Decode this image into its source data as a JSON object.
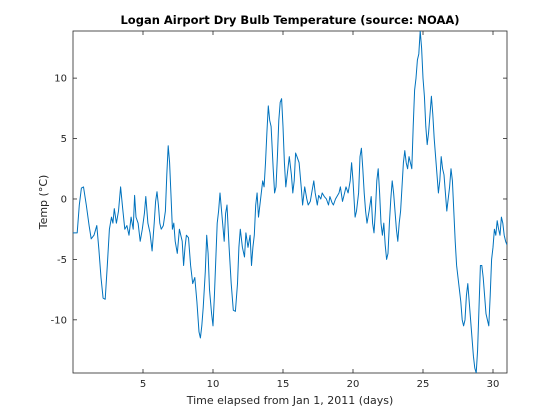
{
  "chart_data": {
    "type": "line",
    "title": "Logan Airport Dry Bulb Temperature (source: NOAA)",
    "xlabel": "Time elapsed from Jan 1, 2011 (days)",
    "ylabel": "Temp (°C)",
    "xlim": [
      0,
      31
    ],
    "ylim": [
      -14.4,
      13.9
    ],
    "xticks": [
      5,
      10,
      15,
      20,
      25,
      30
    ],
    "yticks": [
      -10,
      -5,
      0,
      5,
      10
    ],
    "grid": false,
    "line_color": "#0072bd",
    "series": [
      {
        "points": [
          [
            0.0,
            -2.8
          ],
          [
            0.3,
            -2.8
          ],
          [
            0.45,
            -0.5
          ],
          [
            0.6,
            0.9
          ],
          [
            0.75,
            1.0
          ],
          [
            0.95,
            -0.5
          ],
          [
            1.15,
            -2.2
          ],
          [
            1.3,
            -3.3
          ],
          [
            1.5,
            -3.0
          ],
          [
            1.7,
            -2.2
          ],
          [
            1.85,
            -4.2
          ],
          [
            2.0,
            -6.5
          ],
          [
            2.15,
            -8.2
          ],
          [
            2.3,
            -8.3
          ],
          [
            2.45,
            -5.5
          ],
          [
            2.6,
            -2.5
          ],
          [
            2.75,
            -1.5
          ],
          [
            2.85,
            -2.0
          ],
          [
            2.95,
            -0.8
          ],
          [
            3.1,
            -2.0
          ],
          [
            3.25,
            -1.0
          ],
          [
            3.4,
            1.0
          ],
          [
            3.55,
            -0.8
          ],
          [
            3.7,
            -2.5
          ],
          [
            3.85,
            -2.2
          ],
          [
            4.0,
            -3.0
          ],
          [
            4.15,
            -1.5
          ],
          [
            4.3,
            -2.5
          ],
          [
            4.4,
            0.3
          ],
          [
            4.5,
            -1.5
          ],
          [
            4.65,
            -2.0
          ],
          [
            4.8,
            -3.5
          ],
          [
            4.95,
            -2.5
          ],
          [
            5.1,
            -1.2
          ],
          [
            5.2,
            0.2
          ],
          [
            5.35,
            -2.0
          ],
          [
            5.5,
            -2.8
          ],
          [
            5.65,
            -4.3
          ],
          [
            5.8,
            -2.0
          ],
          [
            5.9,
            -0.2
          ],
          [
            6.0,
            0.6
          ],
          [
            6.1,
            -0.5
          ],
          [
            6.2,
            -2.0
          ],
          [
            6.3,
            -2.5
          ],
          [
            6.45,
            -2.2
          ],
          [
            6.6,
            -1.0
          ],
          [
            6.7,
            2.0
          ],
          [
            6.8,
            4.4
          ],
          [
            6.9,
            3.0
          ],
          [
            7.0,
            0.3
          ],
          [
            7.1,
            -2.5
          ],
          [
            7.2,
            -2.0
          ],
          [
            7.3,
            -3.5
          ],
          [
            7.45,
            -4.5
          ],
          [
            7.6,
            -2.5
          ],
          [
            7.7,
            -3.0
          ],
          [
            7.8,
            -3.5
          ],
          [
            7.9,
            -5.5
          ],
          [
            8.0,
            -4.0
          ],
          [
            8.1,
            -3.0
          ],
          [
            8.25,
            -3.2
          ],
          [
            8.4,
            -5.5
          ],
          [
            8.55,
            -7.0
          ],
          [
            8.7,
            -6.5
          ],
          [
            8.85,
            -8.5
          ],
          [
            9.0,
            -11.0
          ],
          [
            9.1,
            -11.5
          ],
          [
            9.2,
            -10.5
          ],
          [
            9.3,
            -9.0
          ],
          [
            9.45,
            -6.0
          ],
          [
            9.55,
            -3.0
          ],
          [
            9.65,
            -4.5
          ],
          [
            9.75,
            -7.5
          ],
          [
            9.9,
            -9.5
          ],
          [
            10.0,
            -10.5
          ],
          [
            10.1,
            -8.0
          ],
          [
            10.2,
            -5.0
          ],
          [
            10.3,
            -2.0
          ],
          [
            10.4,
            -1.0
          ],
          [
            10.5,
            0.5
          ],
          [
            10.65,
            -1.5
          ],
          [
            10.8,
            -3.5
          ],
          [
            10.9,
            -1.2
          ],
          [
            11.0,
            -0.5
          ],
          [
            11.15,
            -4.0
          ],
          [
            11.3,
            -7.0
          ],
          [
            11.45,
            -9.2
          ],
          [
            11.6,
            -9.3
          ],
          [
            11.75,
            -7.0
          ],
          [
            11.85,
            -4.0
          ],
          [
            11.95,
            -2.5
          ],
          [
            12.1,
            -4.0
          ],
          [
            12.25,
            -4.8
          ],
          [
            12.35,
            -2.8
          ],
          [
            12.5,
            -4.0
          ],
          [
            12.65,
            -3.0
          ],
          [
            12.75,
            -5.5
          ],
          [
            12.85,
            -4.0
          ],
          [
            12.95,
            -3.0
          ],
          [
            13.05,
            -0.5
          ],
          [
            13.15,
            0.5
          ],
          [
            13.25,
            -1.5
          ],
          [
            13.4,
            0.0
          ],
          [
            13.55,
            1.5
          ],
          [
            13.65,
            1.0
          ],
          [
            13.75,
            3.0
          ],
          [
            13.85,
            5.5
          ],
          [
            13.95,
            7.7
          ],
          [
            14.05,
            6.5
          ],
          [
            14.15,
            6.0
          ],
          [
            14.3,
            2.5
          ],
          [
            14.4,
            0.5
          ],
          [
            14.5,
            1.0
          ],
          [
            14.6,
            3.5
          ],
          [
            14.7,
            6.5
          ],
          [
            14.8,
            8.0
          ],
          [
            14.9,
            8.3
          ],
          [
            15.0,
            6.0
          ],
          [
            15.1,
            3.0
          ],
          [
            15.2,
            1.0
          ],
          [
            15.3,
            2.0
          ],
          [
            15.45,
            3.5
          ],
          [
            15.6,
            2.0
          ],
          [
            15.7,
            0.5
          ],
          [
            15.8,
            1.5
          ],
          [
            15.9,
            3.8
          ],
          [
            16.0,
            3.5
          ],
          [
            16.15,
            3.0
          ],
          [
            16.3,
            1.0
          ],
          [
            16.4,
            -0.5
          ],
          [
            16.55,
            1.0
          ],
          [
            16.7,
            0.0
          ],
          [
            16.8,
            -0.5
          ],
          [
            16.95,
            -0.2
          ],
          [
            17.05,
            0.5
          ],
          [
            17.2,
            1.5
          ],
          [
            17.3,
            0.5
          ],
          [
            17.45,
            -0.5
          ],
          [
            17.55,
            0.3
          ],
          [
            17.7,
            0.0
          ],
          [
            17.8,
            0.5
          ],
          [
            17.95,
            0.2
          ],
          [
            18.1,
            0.0
          ],
          [
            18.25,
            -0.5
          ],
          [
            18.35,
            0.2
          ],
          [
            18.5,
            -0.3
          ],
          [
            18.6,
            -0.5
          ],
          [
            18.75,
            0.0
          ],
          [
            18.9,
            0.3
          ],
          [
            19.0,
            0.5
          ],
          [
            19.1,
            1.0
          ],
          [
            19.25,
            -0.2
          ],
          [
            19.4,
            0.5
          ],
          [
            19.5,
            1.0
          ],
          [
            19.65,
            0.5
          ],
          [
            19.8,
            1.5
          ],
          [
            19.9,
            3.0
          ],
          [
            20.0,
            1.5
          ],
          [
            20.15,
            -1.5
          ],
          [
            20.25,
            -1.0
          ],
          [
            20.4,
            0.5
          ],
          [
            20.5,
            3.5
          ],
          [
            20.6,
            4.2
          ],
          [
            20.7,
            2.5
          ],
          [
            20.8,
            0.5
          ],
          [
            20.9,
            -1.0
          ],
          [
            21.0,
            -2.0
          ],
          [
            21.15,
            -1.0
          ],
          [
            21.3,
            0.2
          ],
          [
            21.4,
            -2.0
          ],
          [
            21.5,
            -2.8
          ],
          [
            21.6,
            -1.0
          ],
          [
            21.7,
            1.5
          ],
          [
            21.8,
            2.5
          ],
          [
            21.9,
            0.5
          ],
          [
            22.0,
            -2.0
          ],
          [
            22.1,
            -3.0
          ],
          [
            22.2,
            -2.0
          ],
          [
            22.3,
            -3.8
          ],
          [
            22.4,
            -5.0
          ],
          [
            22.5,
            -4.5
          ],
          [
            22.6,
            -2.0
          ],
          [
            22.7,
            0.0
          ],
          [
            22.8,
            1.5
          ],
          [
            22.9,
            0.5
          ],
          [
            23.0,
            -1.0
          ],
          [
            23.1,
            -2.5
          ],
          [
            23.2,
            -3.5
          ],
          [
            23.3,
            -2.0
          ],
          [
            23.4,
            -1.0
          ],
          [
            23.5,
            1.0
          ],
          [
            23.6,
            3.0
          ],
          [
            23.7,
            4.0
          ],
          [
            23.8,
            3.0
          ],
          [
            23.9,
            2.5
          ],
          [
            24.0,
            3.5
          ],
          [
            24.1,
            3.0
          ],
          [
            24.2,
            2.5
          ],
          [
            24.3,
            6.0
          ],
          [
            24.4,
            9.0
          ],
          [
            24.5,
            10.0
          ],
          [
            24.6,
            11.5
          ],
          [
            24.7,
            12.0
          ],
          [
            24.8,
            13.9
          ],
          [
            24.9,
            12.5
          ],
          [
            25.0,
            10.0
          ],
          [
            25.1,
            8.5
          ],
          [
            25.2,
            6.0
          ],
          [
            25.3,
            4.5
          ],
          [
            25.4,
            5.5
          ],
          [
            25.5,
            7.0
          ],
          [
            25.6,
            8.5
          ],
          [
            25.7,
            7.0
          ],
          [
            25.8,
            5.0
          ],
          [
            25.9,
            3.5
          ],
          [
            26.0,
            2.0
          ],
          [
            26.1,
            0.5
          ],
          [
            26.2,
            1.5
          ],
          [
            26.3,
            3.5
          ],
          [
            26.4,
            2.5
          ],
          [
            26.5,
            2.0
          ],
          [
            26.6,
            0.5
          ],
          [
            26.7,
            -1.0
          ],
          [
            26.8,
            0.0
          ],
          [
            26.9,
            1.0
          ],
          [
            27.0,
            2.5
          ],
          [
            27.1,
            1.5
          ],
          [
            27.2,
            -1.0
          ],
          [
            27.3,
            -3.5
          ],
          [
            27.4,
            -5.5
          ],
          [
            27.5,
            -6.5
          ],
          [
            27.6,
            -7.5
          ],
          [
            27.7,
            -8.5
          ],
          [
            27.8,
            -10.0
          ],
          [
            27.9,
            -10.5
          ],
          [
            28.0,
            -10.0
          ],
          [
            28.1,
            -8.0
          ],
          [
            28.2,
            -7.0
          ],
          [
            28.3,
            -8.5
          ],
          [
            28.4,
            -10.0
          ],
          [
            28.5,
            -11.5
          ],
          [
            28.6,
            -13.0
          ],
          [
            28.7,
            -14.0
          ],
          [
            28.8,
            -14.4
          ],
          [
            28.9,
            -12.5
          ],
          [
            29.0,
            -9.0
          ],
          [
            29.1,
            -5.5
          ],
          [
            29.2,
            -5.5
          ],
          [
            29.3,
            -6.5
          ],
          [
            29.4,
            -8.0
          ],
          [
            29.5,
            -9.5
          ],
          [
            29.6,
            -10.0
          ],
          [
            29.7,
            -10.5
          ],
          [
            29.8,
            -8.0
          ],
          [
            29.9,
            -5.0
          ],
          [
            30.0,
            -4.0
          ],
          [
            30.1,
            -2.5
          ],
          [
            30.2,
            -3.0
          ],
          [
            30.3,
            -1.8
          ],
          [
            30.4,
            -2.5
          ],
          [
            30.5,
            -3.0
          ],
          [
            30.6,
            -1.5
          ],
          [
            30.7,
            -2.0
          ],
          [
            30.8,
            -3.0
          ],
          [
            30.9,
            -3.5
          ],
          [
            31.0,
            -3.8
          ]
        ]
      }
    ]
  }
}
